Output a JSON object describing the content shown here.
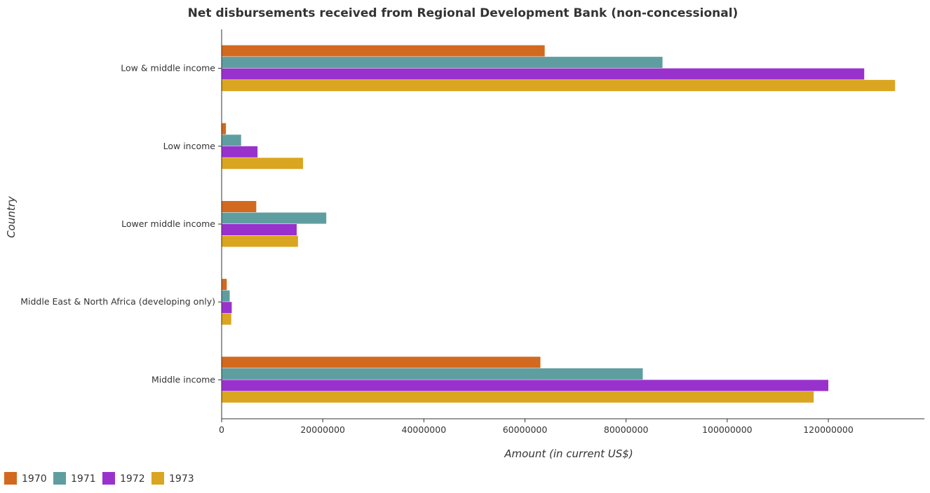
{
  "chart_data": {
    "type": "bar",
    "orientation": "horizontal",
    "title": "Net disbursements received from Regional Development Bank (non-concessional)",
    "xlabel": "Amount (in current US$)",
    "ylabel": "Country",
    "xlim": [
      0,
      139000000
    ],
    "xticks": [
      0,
      20000000,
      40000000,
      60000000,
      80000000,
      100000000,
      120000000
    ],
    "xtick_labels": [
      "0",
      "20000000",
      "40000000",
      "60000000",
      "80000000",
      "100000000",
      "120000000"
    ],
    "grid": false,
    "legend_position": "bottom-left",
    "categories": [
      "Low & middle income",
      "Low income",
      "Lower middle income",
      "Middle East & North Africa (developing only)",
      "Middle income"
    ],
    "series": [
      {
        "name": "1970",
        "color": "#d2691e",
        "values": [
          63900000,
          850000,
          6850000,
          1010000,
          63050000
        ]
      },
      {
        "name": "1971",
        "color": "#5f9ea0",
        "values": [
          87200000,
          3850000,
          20700000,
          1600000,
          83300000
        ]
      },
      {
        "name": "1972",
        "color": "#9932cc",
        "values": [
          127100000,
          7100000,
          14850000,
          2000000,
          120000000
        ]
      },
      {
        "name": "1973",
        "color": "#daa520",
        "values": [
          133200000,
          16100000,
          15100000,
          1900000,
          117100000
        ]
      }
    ]
  }
}
